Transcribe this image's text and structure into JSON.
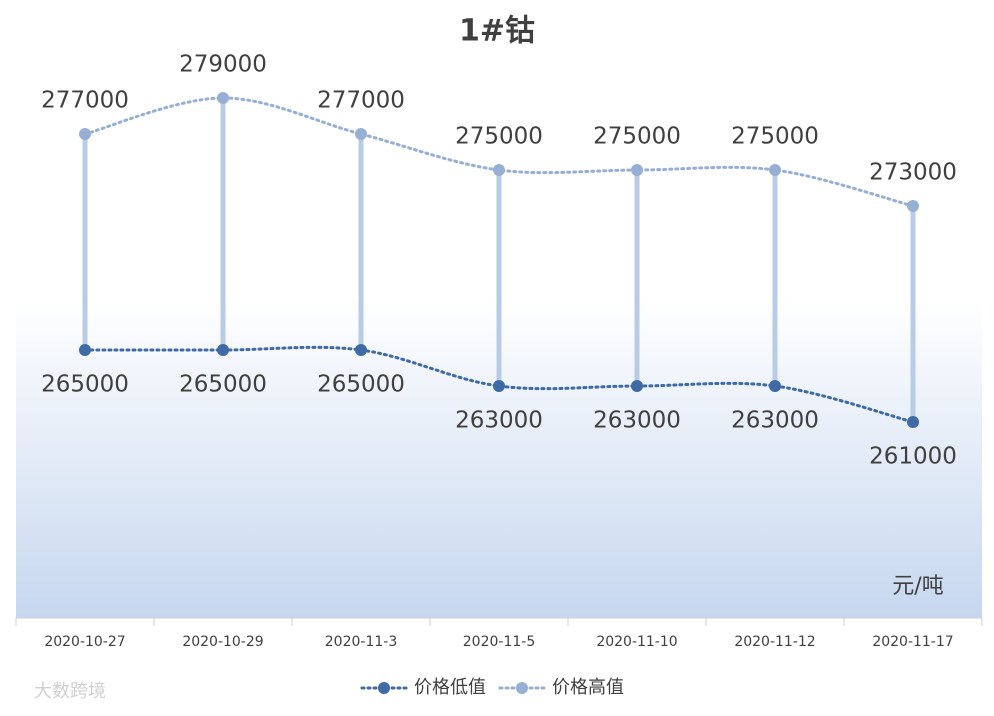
{
  "chart_data": {
    "type": "line",
    "title": "1#钴",
    "unit_label": "元/吨",
    "watermark": "大数跨境",
    "categories": [
      "2020-10-27",
      "2020-10-29",
      "2020-11-3",
      "2020-11-5",
      "2020-11-10",
      "2020-11-12",
      "2020-11-17"
    ],
    "series": [
      {
        "name": "价格低值",
        "color": "#3e6aa6",
        "values": [
          265000,
          265000,
          265000,
          263000,
          263000,
          263000,
          261000
        ]
      },
      {
        "name": "价格高值",
        "color": "#98afd4",
        "values": [
          277000,
          279000,
          277000,
          275000,
          275000,
          275000,
          273000
        ]
      }
    ],
    "high_low_lines": true,
    "high_low_color": "#b9cce6"
  }
}
